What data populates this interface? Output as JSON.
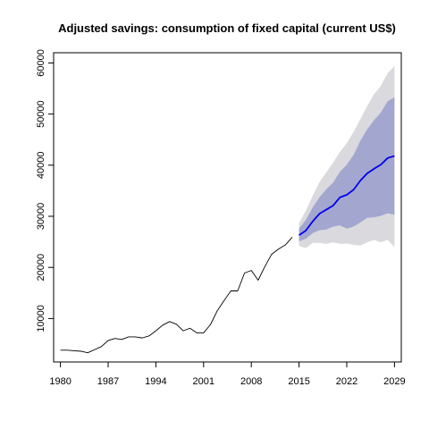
{
  "chart_data": {
    "type": "line",
    "title": "Adjusted savings: consumption of fixed capital (current US$)",
    "xlabel": "",
    "ylabel": "",
    "xlim": [
      1979,
      2030
    ],
    "ylim": [
      1500,
      62000
    ],
    "x_ticks": [
      1980,
      1987,
      1994,
      2001,
      2008,
      2015,
      2022,
      2029
    ],
    "y_ticks": [
      10000,
      20000,
      30000,
      40000,
      50000,
      60000
    ],
    "grid": false,
    "legend": "none",
    "colors": {
      "history": "#000000",
      "forecast": "#0000ee",
      "band_inner": "#a3a7cf",
      "band_outer": "#d9d9de"
    },
    "series": [
      {
        "role": "history",
        "x": [
          1980,
          1981,
          1982,
          1983,
          1984,
          1985,
          1986,
          1987,
          1988,
          1989,
          1990,
          1991,
          1992,
          1993,
          1994,
          1995,
          1996,
          1997,
          1998,
          1999,
          2000,
          2001,
          2002,
          2003,
          2004,
          2005,
          2006,
          2007,
          2008,
          2009,
          2010,
          2011,
          2012,
          2013,
          2014
        ],
        "values": [
          3800,
          3800,
          3700,
          3600,
          3300,
          3900,
          4500,
          5700,
          6100,
          5900,
          6400,
          6400,
          6200,
          6600,
          7600,
          8700,
          9400,
          8900,
          7600,
          8100,
          7200,
          7200,
          8800,
          11500,
          13500,
          15400,
          15400,
          18900,
          19400,
          17500,
          20200,
          22600,
          23600,
          24400,
          25900
        ]
      },
      {
        "role": "forecast",
        "x": [
          2015,
          2016,
          2017,
          2018,
          2019,
          2020,
          2021,
          2022,
          2023,
          2024,
          2025,
          2026,
          2027,
          2028,
          2029
        ],
        "values": [
          26300,
          27200,
          29000,
          30500,
          31300,
          32100,
          33700,
          34200,
          35200,
          37000,
          38400,
          39300,
          40100,
          41400,
          41800
        ]
      }
    ],
    "bands": [
      {
        "role": "outer",
        "x": [
          2015,
          2016,
          2017,
          2018,
          2019,
          2020,
          2021,
          2022,
          2023,
          2024,
          2025,
          2026,
          2027,
          2028,
          2029
        ],
        "low": [
          24200,
          23800,
          24800,
          24800,
          24600,
          24900,
          24600,
          24700,
          24400,
          24300,
          24900,
          25400,
          24900,
          25400,
          24000
        ],
        "high": [
          28700,
          31100,
          34000,
          36700,
          38600,
          40500,
          42600,
          44300,
          46500,
          49000,
          51600,
          53900,
          55500,
          58000,
          59400
        ]
      },
      {
        "role": "inner",
        "x": [
          2015,
          2016,
          2017,
          2018,
          2019,
          2020,
          2021,
          2022,
          2023,
          2024,
          2025,
          2026,
          2027,
          2028,
          2029
        ],
        "low": [
          25100,
          25600,
          26700,
          27300,
          27400,
          28000,
          28200,
          27600,
          28000,
          28800,
          29700,
          29800,
          30100,
          30600,
          30300
        ],
        "high": [
          27600,
          29300,
          31700,
          33700,
          35300,
          36600,
          38700,
          40100,
          42000,
          44800,
          47000,
          48800,
          50300,
          52500,
          53300
        ]
      }
    ]
  }
}
